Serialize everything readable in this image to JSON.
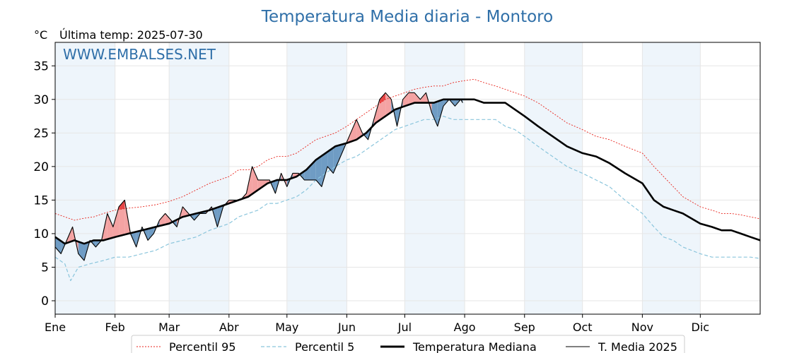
{
  "chart_data": {
    "type": "line",
    "title": "Temperatura Media diaria - Montoro",
    "unit_label": "°C",
    "last_temp_label": "Última temp: 2025-07-30",
    "watermark": "WWW.EMBALSES.NET",
    "xlabel": "",
    "ylabel": "",
    "ylim": [
      -2,
      38.5
    ],
    "xlim": [
      0,
      365
    ],
    "grid": true,
    "legend_position": "bottom-center",
    "months": [
      "Ene",
      "Feb",
      "Mar",
      "Abr",
      "May",
      "Jun",
      "Jul",
      "Ago",
      "Sep",
      "Oct",
      "Nov",
      "Dic"
    ],
    "month_starts": [
      0,
      31,
      59,
      90,
      120,
      151,
      181,
      212,
      243,
      273,
      304,
      334
    ],
    "yticks": [
      0,
      5,
      10,
      15,
      20,
      25,
      30,
      35
    ],
    "colors": {
      "p95": "#e8231b",
      "p5": "#8ac5dc",
      "median": "#000000",
      "year": "#000000",
      "above_fill": "#f4a3a3",
      "above_strong": "#e64545",
      "below_fill": "#6f9cc4",
      "band": "#eef5fb"
    },
    "series": [
      {
        "name": "Percentil 95",
        "style": "dotted",
        "x": [
          0,
          5,
          10,
          15,
          20,
          25,
          31,
          38,
          45,
          52,
          59,
          66,
          73,
          80,
          90,
          95,
          100,
          105,
          110,
          115,
          120,
          125,
          130,
          135,
          140,
          145,
          151,
          156,
          161,
          166,
          171,
          176,
          181,
          186,
          191,
          196,
          201,
          206,
          212,
          217,
          222,
          228,
          233,
          238,
          243,
          250,
          255,
          260,
          265,
          273,
          280,
          287,
          295,
          304,
          310,
          315,
          320,
          325,
          334,
          340,
          345,
          350,
          355,
          360,
          365
        ],
        "y": [
          13,
          12.5,
          12,
          12.3,
          12.5,
          13,
          13.5,
          13.8,
          14,
          14.3,
          14.8,
          15.5,
          16.5,
          17.5,
          18.5,
          19.5,
          19.5,
          20,
          21,
          21.5,
          21.5,
          22,
          23,
          24,
          24.5,
          25,
          26,
          27,
          28,
          29,
          30,
          30.5,
          31,
          31.5,
          31.8,
          32,
          32,
          32.5,
          32.8,
          33,
          32.5,
          32,
          31.5,
          31,
          30.5,
          29.5,
          28.5,
          27.5,
          26.5,
          25.5,
          24.5,
          24,
          23,
          22,
          20,
          18.5,
          17,
          15.5,
          14,
          13.5,
          13,
          13,
          12.8,
          12.5,
          12.2
        ]
      },
      {
        "name": "Percentil 5",
        "style": "dashed",
        "x": [
          0,
          5,
          8,
          12,
          18,
          25,
          31,
          38,
          45,
          52,
          59,
          66,
          73,
          80,
          90,
          95,
          100,
          105,
          110,
          115,
          120,
          125,
          130,
          135,
          140,
          145,
          151,
          156,
          161,
          166,
          171,
          176,
          181,
          186,
          191,
          196,
          201,
          206,
          212,
          217,
          222,
          228,
          233,
          238,
          243,
          250,
          255,
          260,
          265,
          273,
          280,
          287,
          295,
          304,
          310,
          315,
          320,
          325,
          334,
          340,
          345,
          350,
          355,
          360,
          365
        ],
        "y": [
          6.5,
          5.5,
          3,
          5,
          5.5,
          6,
          6.5,
          6.5,
          7,
          7.5,
          8.5,
          9,
          9.5,
          10.5,
          11.5,
          12.5,
          13,
          13.5,
          14.5,
          14.5,
          15,
          15.5,
          16.5,
          18,
          19,
          20,
          21,
          21.5,
          22.5,
          23.5,
          24.5,
          25.5,
          26,
          26.5,
          27,
          27,
          27.5,
          27,
          27,
          27,
          27,
          27,
          26,
          25.5,
          24.5,
          23,
          22,
          21,
          20,
          19,
          18,
          17,
          15,
          13,
          11,
          9.5,
          9,
          8,
          7,
          6.5,
          6.5,
          6.5,
          6.5,
          6.5,
          6.3
        ]
      },
      {
        "name": "Temperatura Mediana",
        "style": "solid-thick",
        "x": [
          0,
          5,
          10,
          15,
          20,
          25,
          31,
          38,
          45,
          52,
          59,
          66,
          73,
          80,
          90,
          95,
          100,
          105,
          110,
          115,
          120,
          125,
          130,
          135,
          140,
          145,
          151,
          156,
          161,
          166,
          171,
          176,
          181,
          186,
          191,
          196,
          201,
          206,
          212,
          217,
          222,
          228,
          233,
          238,
          243,
          250,
          255,
          260,
          265,
          273,
          280,
          287,
          295,
          304,
          310,
          315,
          320,
          325,
          334,
          340,
          345,
          350,
          355,
          360,
          365
        ],
        "y": [
          9.5,
          8.5,
          9,
          8.5,
          9,
          9,
          9.5,
          10,
          10.5,
          11,
          11.5,
          12.5,
          13,
          13.5,
          14.5,
          15,
          15.5,
          16.5,
          17.5,
          18,
          18,
          18.5,
          19.5,
          21,
          22,
          23,
          23.5,
          24,
          25,
          26.5,
          27.5,
          28.5,
          29,
          29.5,
          29.5,
          29.5,
          30,
          30,
          30,
          30,
          29.5,
          29.5,
          29.5,
          28.5,
          27.5,
          26,
          25,
          24,
          23,
          22,
          21.5,
          20.5,
          19,
          17.5,
          15,
          14,
          13.5,
          13,
          11.5,
          11,
          10.5,
          10.5,
          10,
          9.5,
          9
        ]
      },
      {
        "name": "T. Media 2025",
        "style": "solid-thin",
        "x": [
          0,
          3,
          6,
          9,
          12,
          15,
          18,
          21,
          24,
          27,
          30,
          33,
          36,
          39,
          42,
          45,
          48,
          51,
          54,
          57,
          60,
          63,
          66,
          69,
          72,
          75,
          78,
          81,
          84,
          87,
          90,
          93,
          96,
          99,
          102,
          105,
          108,
          111,
          114,
          117,
          120,
          123,
          126,
          129,
          132,
          135,
          138,
          141,
          144,
          147,
          150,
          153,
          156,
          159,
          162,
          165,
          168,
          171,
          174,
          177,
          180,
          183,
          186,
          189,
          192,
          195,
          198,
          201,
          204,
          207,
          210,
          211
        ],
        "y": [
          8,
          7,
          9,
          11,
          7,
          6,
          9,
          8,
          9,
          13,
          11,
          14,
          15,
          10,
          8,
          11,
          9,
          10,
          12,
          13,
          12,
          11,
          14,
          13,
          12,
          13,
          13,
          14,
          11,
          14,
          15,
          15,
          15,
          16,
          20,
          18,
          18,
          18,
          16,
          19,
          17,
          19,
          19,
          18,
          18,
          18,
          17,
          20,
          19,
          21,
          23,
          25,
          27,
          25,
          24,
          27,
          30,
          31,
          30,
          26,
          30,
          31,
          31,
          30,
          31,
          28,
          26,
          29,
          30,
          29,
          30,
          29.5
        ]
      }
    ]
  }
}
